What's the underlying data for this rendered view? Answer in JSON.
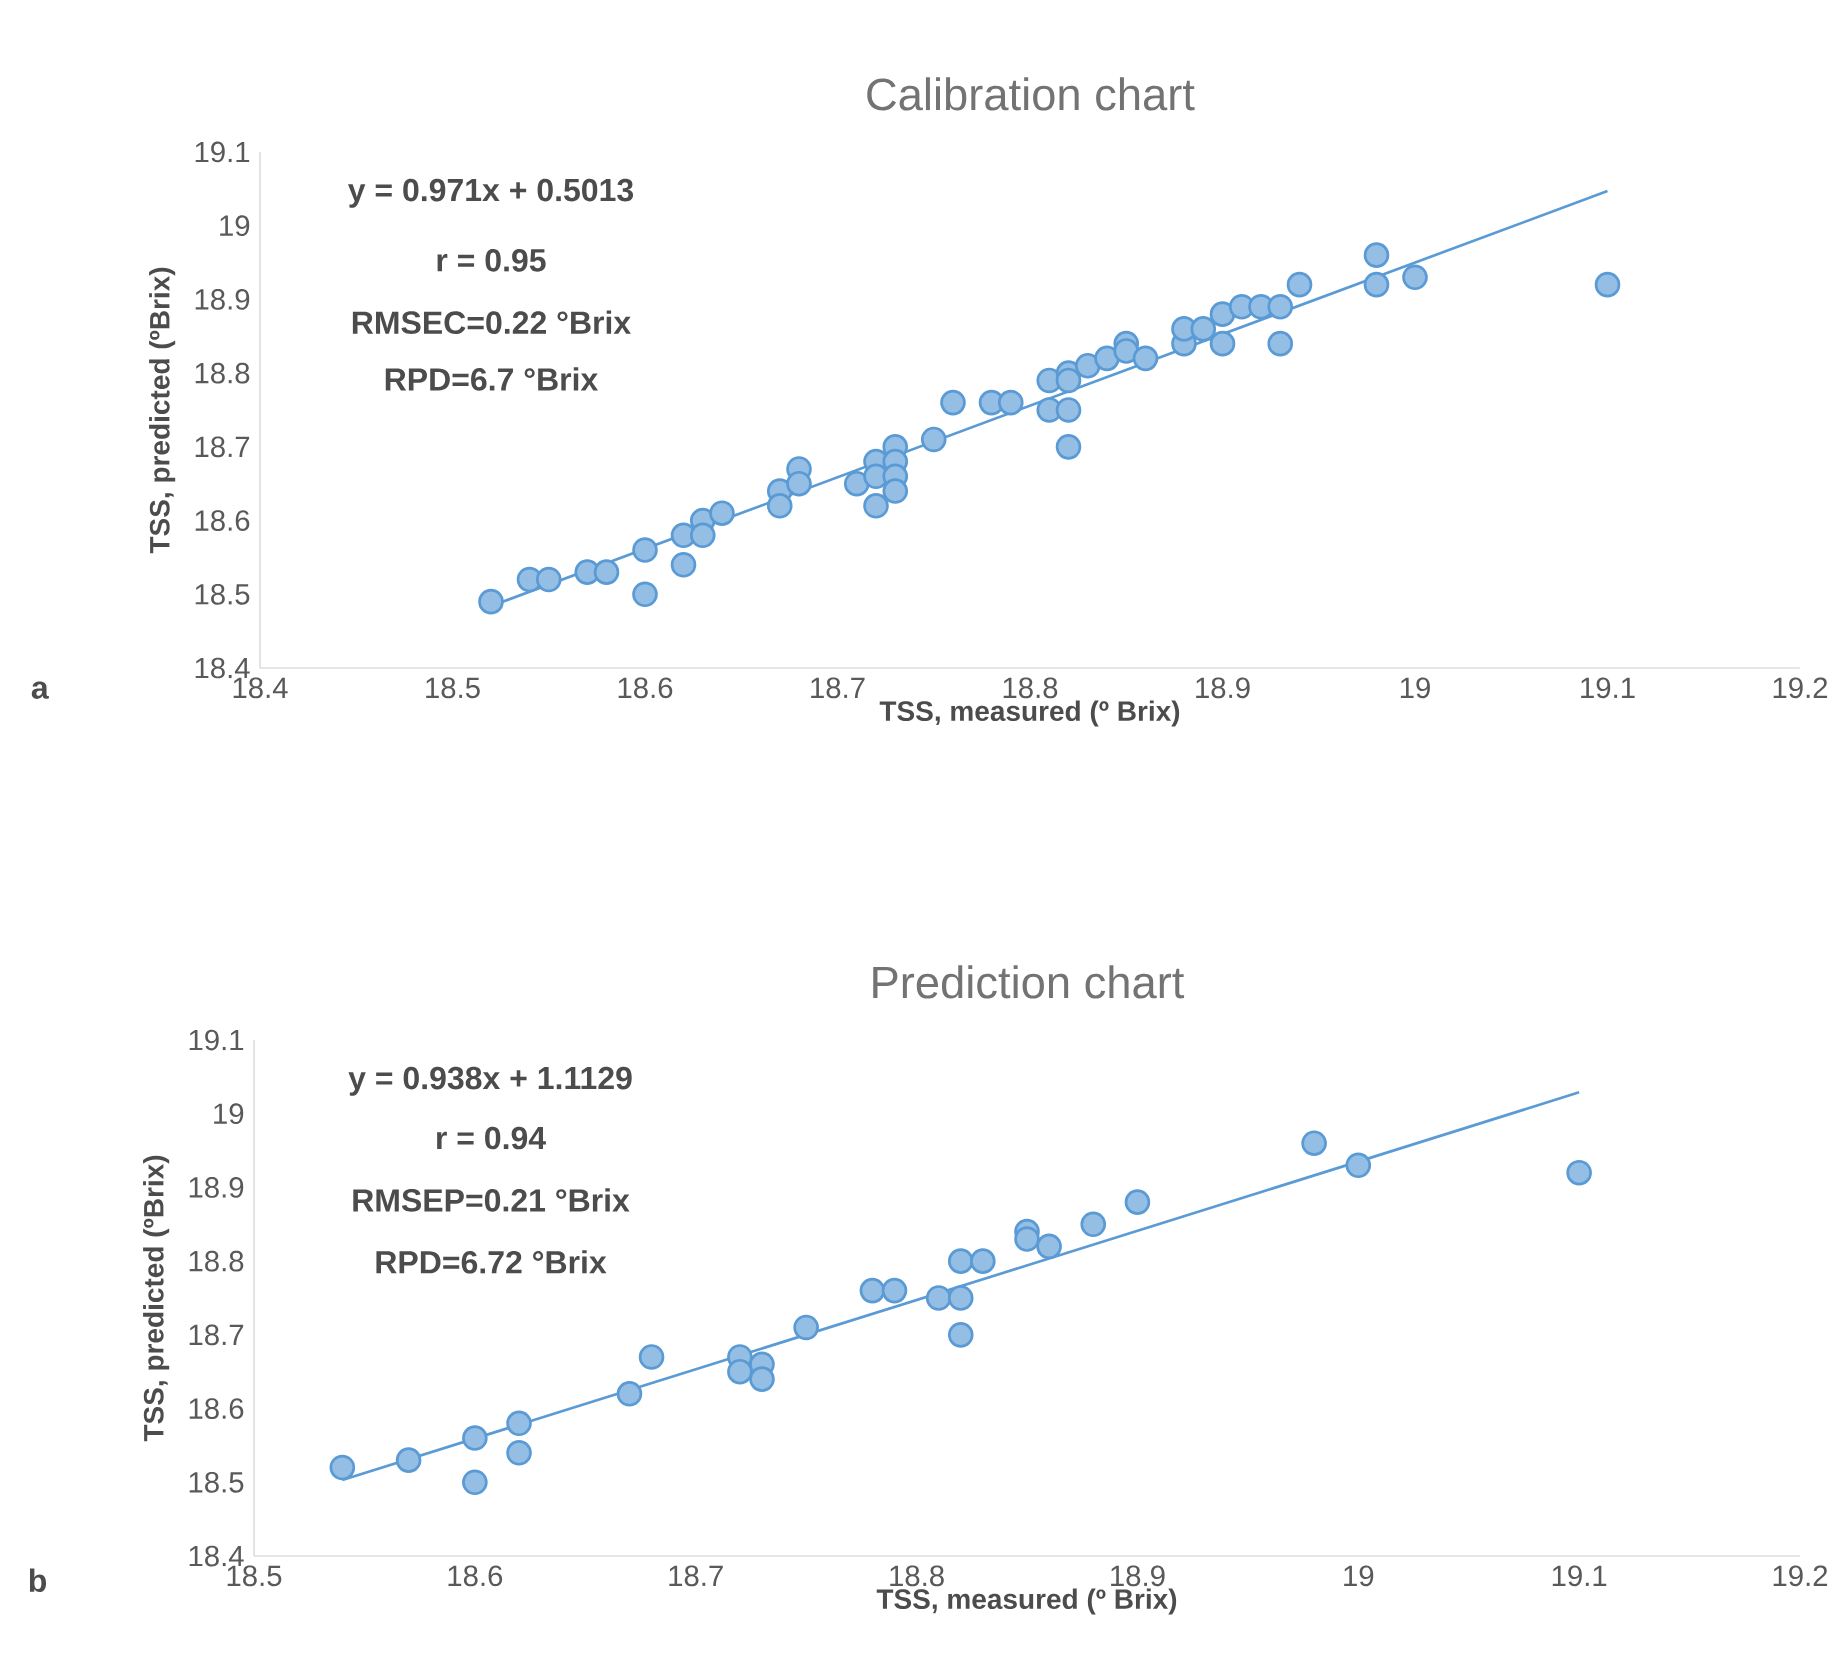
{
  "chart_data": [
    {
      "type": "scatter",
      "title": "Calibration chart",
      "xlabel": "TSS, measured (º Brix)",
      "ylabel": "TSS, predicted (ºBrix)",
      "xlim": [
        18.4,
        19.2
      ],
      "ylim": [
        18.4,
        19.1
      ],
      "xticks": [
        18.4,
        18.5,
        18.6,
        18.7,
        18.8,
        18.9,
        19,
        19.1,
        19.2
      ],
      "yticks": [
        18.4,
        18.5,
        18.6,
        18.7,
        18.8,
        18.9,
        19,
        19.1
      ],
      "annotations": [
        "y = 0.971x + 0.5013",
        "r = 0.95",
        "RMSEC=0.22 °Brix",
        "RPD=6.7 °Brix",
        "a"
      ],
      "series": [
        {
          "marker": "circle",
          "color": "#5b9bd5",
          "x": [
            18.52,
            18.54,
            18.55,
            18.57,
            18.58,
            18.6,
            18.6,
            18.62,
            18.62,
            18.63,
            18.63,
            18.64,
            18.67,
            18.67,
            18.68,
            18.68,
            18.71,
            18.72,
            18.72,
            18.72,
            18.73,
            18.73,
            18.73,
            18.73,
            18.75,
            18.76,
            18.78,
            18.79,
            18.81,
            18.81,
            18.82,
            18.82,
            18.82,
            18.82,
            18.83,
            18.84,
            18.85,
            18.85,
            18.86,
            18.88,
            18.88,
            18.89,
            18.9,
            18.9,
            18.91,
            18.92,
            18.93,
            18.93,
            18.94,
            18.98,
            18.98,
            19.0,
            19.1
          ],
          "values": [
            18.49,
            18.52,
            18.52,
            18.53,
            18.53,
            18.56,
            18.5,
            18.58,
            18.54,
            18.6,
            18.58,
            18.61,
            18.64,
            18.62,
            18.67,
            18.65,
            18.65,
            18.68,
            18.66,
            18.62,
            18.7,
            18.68,
            18.66,
            18.64,
            18.71,
            18.76,
            18.76,
            18.76,
            18.79,
            18.75,
            18.8,
            18.79,
            18.75,
            18.7,
            18.81,
            18.82,
            18.84,
            18.83,
            18.82,
            18.84,
            18.86,
            18.86,
            18.88,
            18.84,
            18.89,
            18.89,
            18.89,
            18.84,
            18.92,
            18.96,
            18.92,
            18.93,
            18.92
          ]
        },
        {
          "type": "line",
          "marker": "none",
          "color": "#5b9bd5",
          "x": [
            18.52,
            19.1
          ],
          "values": [
            18.484,
            19.047
          ]
        }
      ]
    },
    {
      "type": "scatter",
      "title": "Prediction chart",
      "xlabel": "TSS, measured (º Brix)",
      "ylabel": "TSS, predicted (ºBrix)",
      "xlim": [
        18.5,
        19.2
      ],
      "ylim": [
        18.4,
        19.1
      ],
      "xticks": [
        18.5,
        18.6,
        18.7,
        18.8,
        18.9,
        19,
        19.1,
        19.2
      ],
      "yticks": [
        18.4,
        18.5,
        18.6,
        18.7,
        18.8,
        18.9,
        19,
        19.1
      ],
      "annotations": [
        "y = 0.938x + 1.1129",
        "r = 0.94",
        "RMSEP=0.21 °Brix",
        "RPD=6.72 °Brix",
        "b"
      ],
      "series": [
        {
          "marker": "circle",
          "color": "#5b9bd5",
          "x": [
            18.54,
            18.57,
            18.6,
            18.6,
            18.62,
            18.62,
            18.67,
            18.68,
            18.72,
            18.72,
            18.73,
            18.73,
            18.75,
            18.78,
            18.79,
            18.81,
            18.82,
            18.82,
            18.82,
            18.83,
            18.85,
            18.85,
            18.86,
            18.88,
            18.9,
            18.98,
            19.0,
            19.1
          ],
          "values": [
            18.52,
            18.53,
            18.56,
            18.5,
            18.58,
            18.54,
            18.62,
            18.67,
            18.67,
            18.65,
            18.66,
            18.64,
            18.71,
            18.76,
            18.76,
            18.75,
            18.8,
            18.75,
            18.7,
            18.8,
            18.84,
            18.83,
            18.82,
            18.85,
            18.88,
            18.96,
            18.93,
            18.92
          ]
        },
        {
          "type": "line",
          "marker": "none",
          "color": "#5b9bd5",
          "x": [
            18.54,
            19.1
          ],
          "values": [
            18.503,
            19.029
          ]
        }
      ]
    }
  ]
}
